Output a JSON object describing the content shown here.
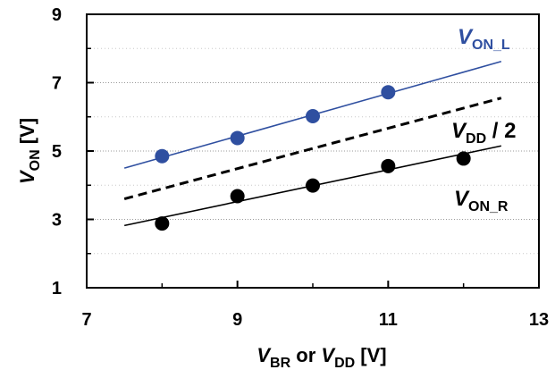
{
  "chart_data": {
    "type": "scatter",
    "x_axis": {
      "ticks": [
        7,
        9,
        11,
        13
      ],
      "tick_labels": [
        "7",
        "9",
        "11",
        "13"
      ],
      "minor_ticks": [
        8,
        10,
        12
      ],
      "range": [
        7,
        13
      ],
      "label_parts": [
        {
          "text": "V",
          "italic": true,
          "sub": false
        },
        {
          "text": "BR",
          "italic": false,
          "sub": true
        },
        {
          "text": " or ",
          "italic": false,
          "sub": false
        },
        {
          "text": "V",
          "italic": true,
          "sub": false
        },
        {
          "text": "DD",
          "italic": false,
          "sub": true
        },
        {
          "text": " [V]",
          "italic": false,
          "sub": false
        }
      ]
    },
    "y_axis": {
      "ticks": [
        1,
        3,
        5,
        7,
        9
      ],
      "tick_labels": [
        "1",
        "3",
        "5",
        "7",
        "9"
      ],
      "minor_ticks": [
        2,
        4,
        6,
        8
      ],
      "range": [
        1,
        9
      ],
      "label_parts": [
        {
          "text": "V",
          "italic": true,
          "sub": false
        },
        {
          "text": "ON",
          "italic": false,
          "sub": true
        },
        {
          "text": " [V]",
          "italic": false,
          "sub": false
        }
      ]
    },
    "grid": "horizontal-dotted",
    "series": [
      {
        "id": "von-l",
        "name_parts": [
          {
            "text": "V",
            "italic": true,
            "sub": false
          },
          {
            "text": "ON_L",
            "italic": false,
            "sub": true
          }
        ],
        "color": "#2f4fa0",
        "points": [
          [
            8,
            4.85
          ],
          [
            9,
            5.38
          ],
          [
            10,
            6.02
          ],
          [
            11,
            6.72
          ]
        ],
        "fit_line": {
          "x": [
            7.5,
            12.5
          ],
          "y": [
            4.5,
            7.62
          ],
          "dashed": false
        }
      },
      {
        "id": "vdd-half",
        "name_parts": [
          {
            "text": "V",
            "italic": true,
            "sub": false
          },
          {
            "text": "DD",
            "italic": false,
            "sub": true
          },
          {
            "text": " / 2",
            "italic": false,
            "sub": false
          }
        ],
        "color": "#000000",
        "points": [],
        "fit_line": {
          "x": [
            7.5,
            12.5
          ],
          "y": [
            3.6,
            6.55
          ],
          "dashed": true
        }
      },
      {
        "id": "von-r",
        "name_parts": [
          {
            "text": "V",
            "italic": true,
            "sub": false
          },
          {
            "text": "ON_R",
            "italic": false,
            "sub": true
          }
        ],
        "color": "#000000",
        "points": [
          [
            8,
            2.88
          ],
          [
            9,
            3.68
          ],
          [
            10,
            3.99
          ],
          [
            11,
            4.56
          ],
          [
            12,
            4.78
          ]
        ],
        "fit_line": {
          "x": [
            7.5,
            12.5
          ],
          "y": [
            2.82,
            5.15
          ],
          "dashed": false
        }
      }
    ]
  }
}
